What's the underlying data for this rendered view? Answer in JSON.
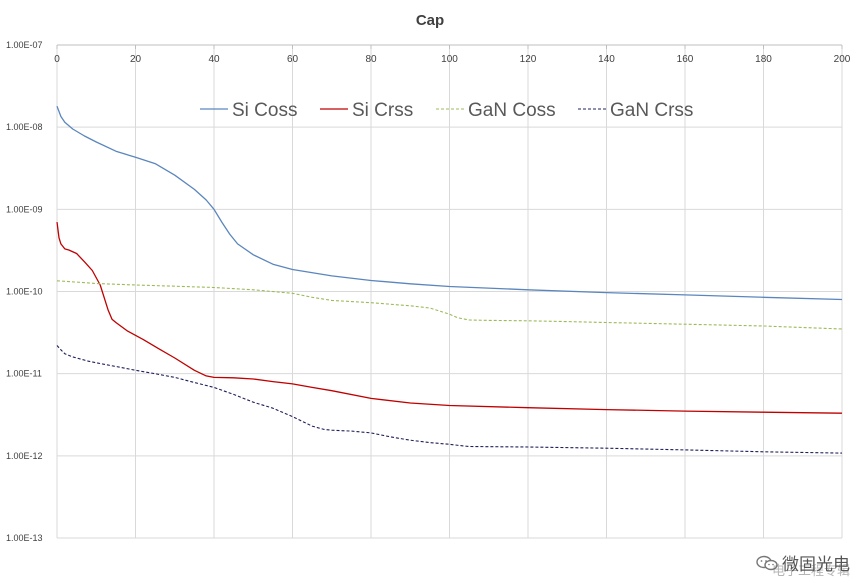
{
  "chart_data": {
    "type": "line",
    "title": "Cap",
    "xlabel": "",
    "ylabel": "",
    "x_range": [
      0,
      200
    ],
    "y_scale": "log",
    "y_range": [
      1e-13,
      1e-07
    ],
    "x_ticks": [
      "0",
      "20",
      "40",
      "60",
      "80",
      "100",
      "120",
      "140",
      "160",
      "180",
      "200"
    ],
    "y_ticks": [
      "1.00E-13",
      "1.00E-12",
      "1.00E-11",
      "1.00E-10",
      "1.00E-09",
      "1.00E-08",
      "1.00E-07"
    ],
    "legend_position": "top",
    "series": [
      {
        "name": "Si Coss",
        "color": "#5b86bd",
        "dash": "solid",
        "x": [
          0,
          1,
          2,
          4,
          7,
          10,
          15,
          20,
          25,
          30,
          35,
          38,
          40,
          42,
          44,
          46,
          50,
          55,
          60,
          70,
          80,
          90,
          100,
          120,
          140,
          160,
          180,
          200
        ],
        "y": [
          1.8e-08,
          1.35e-08,
          1.15e-08,
          9.5e-09,
          7.8e-09,
          6.6e-09,
          5.1e-09,
          4.3e-09,
          3.6e-09,
          2.6e-09,
          1.75e-09,
          1.3e-09,
          1e-09,
          7e-10,
          5e-10,
          3.8e-10,
          2.8e-10,
          2.15e-10,
          1.85e-10,
          1.55e-10,
          1.36e-10,
          1.24e-10,
          1.15e-10,
          1.05e-10,
          9.7e-11,
          9.1e-11,
          8.5e-11,
          8e-11
        ]
      },
      {
        "name": "Si Crss",
        "color": "#c00000",
        "dash": "solid",
        "x": [
          0,
          0.5,
          1,
          2,
          3,
          5,
          7,
          9,
          11,
          12,
          13,
          14,
          15,
          18,
          22,
          26,
          30,
          35,
          38,
          40,
          45,
          50,
          55,
          60,
          65,
          70,
          80,
          90,
          100,
          120,
          140,
          160,
          180,
          200
        ],
        "y": [
          7e-10,
          4.5e-10,
          3.8e-10,
          3.3e-10,
          3.2e-10,
          2.9e-10,
          2.3e-10,
          1.8e-10,
          1.2e-10,
          8.5e-11,
          6e-11,
          4.6e-11,
          4.2e-11,
          3.3e-11,
          2.6e-11,
          2e-11,
          1.55e-11,
          1.1e-11,
          9.4e-12,
          9e-12,
          8.9e-12,
          8.6e-12,
          8e-12,
          7.5e-12,
          6.8e-12,
          6.2e-12,
          5e-12,
          4.4e-12,
          4.1e-12,
          3.85e-12,
          3.65e-12,
          3.5e-12,
          3.4e-12,
          3.3e-12
        ]
      },
      {
        "name": "GaN Coss",
        "color": "#9bbb59",
        "dash": "dashed",
        "x": [
          0,
          5,
          10,
          20,
          30,
          40,
          50,
          60,
          65,
          70,
          80,
          90,
          95,
          100,
          102,
          105,
          110,
          120,
          130,
          140,
          160,
          180,
          200
        ],
        "y": [
          1.35e-10,
          1.3e-10,
          1.25e-10,
          1.2e-10,
          1.16e-10,
          1.12e-10,
          1.05e-10,
          9.5e-11,
          8.5e-11,
          7.8e-11,
          7.3e-11,
          6.7e-11,
          6.3e-11,
          5.3e-11,
          4.8e-11,
          4.5e-11,
          4.45e-11,
          4.4e-11,
          4.3e-11,
          4.2e-11,
          4e-11,
          3.8e-11,
          3.5e-11
        ]
      },
      {
        "name": "GaN Crss",
        "color": "#1f1f5c",
        "dash": "dashed",
        "x": [
          0,
          1,
          2,
          4,
          8,
          12,
          16,
          20,
          25,
          30,
          35,
          40,
          45,
          50,
          55,
          60,
          65,
          68,
          70,
          75,
          80,
          85,
          90,
          95,
          100,
          103,
          105,
          120,
          140,
          160,
          180,
          200
        ],
        "y": [
          2.2e-11,
          1.95e-11,
          1.75e-11,
          1.6e-11,
          1.42e-11,
          1.3e-11,
          1.2e-11,
          1.1e-11,
          1e-11,
          9e-12,
          7.8e-12,
          6.8e-12,
          5.6e-12,
          4.5e-12,
          3.8e-12,
          3e-12,
          2.3e-12,
          2.1e-12,
          2.05e-12,
          2e-12,
          1.9e-12,
          1.7e-12,
          1.55e-12,
          1.45e-12,
          1.38e-12,
          1.33e-12,
          1.3e-12,
          1.28e-12,
          1.24e-12,
          1.18e-12,
          1.12e-12,
          1.08e-12
        ]
      }
    ]
  },
  "watermark": {
    "brand": "微固光电",
    "subtitle": "电子工程专辑"
  }
}
